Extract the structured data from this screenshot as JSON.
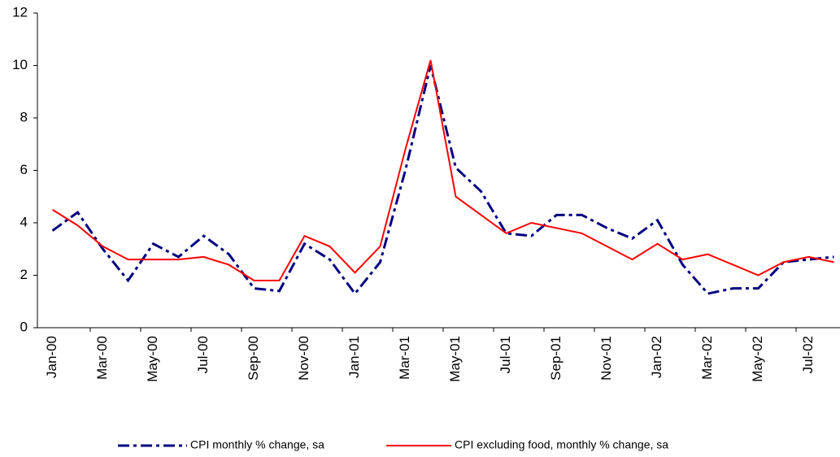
{
  "chart_data": {
    "type": "line",
    "categories": [
      "Jan-00",
      null,
      "Mar-00",
      null,
      "May-00",
      null,
      "Jul-00",
      null,
      "Sep-00",
      null,
      "Nov-00",
      null,
      "Jan-01",
      null,
      "Mar-01",
      null,
      "May-01",
      null,
      "Jul-01",
      null,
      "Sep-01",
      null,
      "Nov-01",
      null,
      "Jan-02",
      null,
      "Mar-02",
      null,
      "May-02",
      null,
      "Jul-02",
      null
    ],
    "series": [
      {
        "name": "CPI monthly % change, sa",
        "color": "#000080",
        "dash": "dash-dot",
        "values": [
          3.7,
          4.4,
          3.0,
          1.8,
          3.2,
          2.7,
          3.5,
          2.8,
          1.5,
          1.4,
          3.2,
          2.6,
          1.3,
          2.5,
          6.0,
          10.0,
          6.1,
          5.2,
          3.6,
          3.5,
          4.3,
          4.3,
          3.8,
          3.4,
          4.1,
          2.4,
          1.3,
          1.5,
          1.5,
          2.5,
          2.6,
          2.7
        ]
      },
      {
        "name": "CPI excluding food, monthly % change, sa",
        "color": "#ff0000",
        "dash": "solid",
        "values": [
          4.5,
          3.9,
          3.1,
          2.6,
          2.6,
          2.6,
          2.7,
          2.4,
          1.8,
          1.8,
          3.5,
          3.1,
          2.1,
          3.1,
          6.8,
          10.2,
          5.0,
          4.3,
          3.6,
          4.0,
          3.8,
          3.6,
          3.1,
          2.6,
          3.2,
          2.6,
          2.8,
          2.4,
          2.0,
          2.5,
          2.7,
          2.5
        ]
      }
    ],
    "ylim": [
      0,
      12
    ],
    "yticks": [
      0,
      2,
      4,
      6,
      8,
      10,
      12
    ],
    "grid": false,
    "legend": "bottom"
  }
}
